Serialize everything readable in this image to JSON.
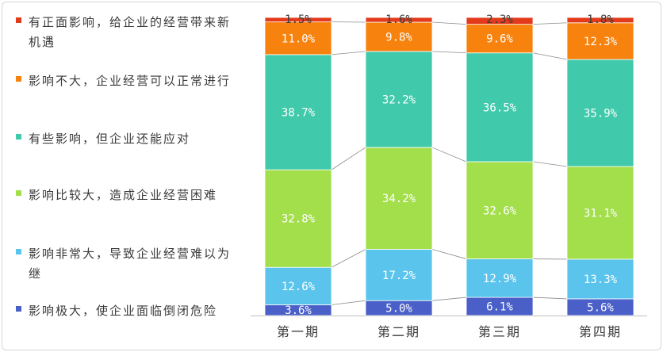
{
  "chart_data": {
    "type": "bar",
    "stacked": true,
    "percent": true,
    "categories": [
      "第一期",
      "第二期",
      "第三期",
      "第四期"
    ],
    "series": [
      {
        "name": "影响极大，使企业面临倒闭危险",
        "color": "#4a5fc8",
        "values": [
          3.6,
          5.0,
          6.1,
          5.6
        ]
      },
      {
        "name": "影响非常大，导致企业经营难以为继",
        "color": "#5ac4ec",
        "values": [
          12.6,
          17.2,
          12.9,
          13.3
        ]
      },
      {
        "name": "影响比较大，造成企业经营困难",
        "color": "#a3de4b",
        "values": [
          32.8,
          34.2,
          32.6,
          31.1
        ]
      },
      {
        "name": "有些影响，但企业还能应对",
        "color": "#40c9ab",
        "values": [
          38.7,
          32.2,
          36.5,
          35.9
        ]
      },
      {
        "name": "影响不大，企业经营可以正常进行",
        "color": "#f7820e",
        "values": [
          11.0,
          9.8,
          9.6,
          12.3
        ]
      },
      {
        "name": "有正面影响，给企业的经营带来新机遇",
        "color": "#e33a1c",
        "values": [
          1.5,
          1.6,
          2.3,
          1.8
        ]
      }
    ],
    "data_labels": [
      [
        "3.6%",
        "5.0%",
        "6.1%",
        "5.6%"
      ],
      [
        "12.6%",
        "17.2%",
        "12.9%",
        "13.3%"
      ],
      [
        "32.8%",
        "34.2%",
        "32.6%",
        "31.1%"
      ],
      [
        "38.7%",
        "32.2%",
        "36.5%",
        "35.9%"
      ],
      [
        "11.0%",
        "9.8%",
        "9.6%",
        "12.3%"
      ],
      [
        "1.5%",
        "1.6%",
        "2.3%",
        "1.8%"
      ]
    ],
    "legend_position": "left",
    "grid": false
  }
}
